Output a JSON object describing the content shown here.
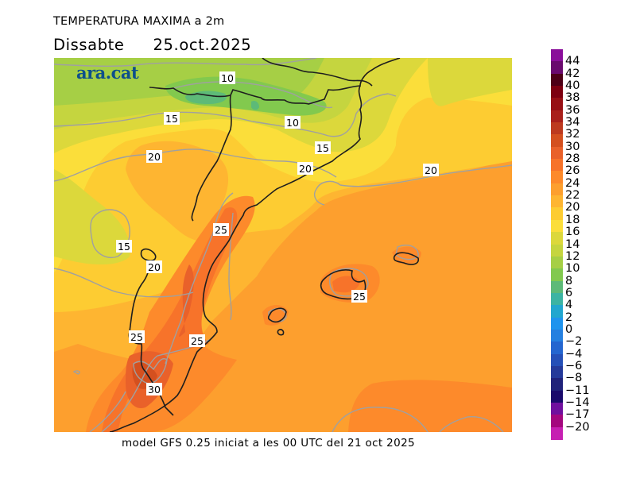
{
  "header": {
    "title": "TEMPERATURA MAXIMA a 2m",
    "day": "Dissabte",
    "date": "25.oct.2025"
  },
  "map": {
    "logo": "ara.cat",
    "contour_labels": [
      "10",
      "10",
      "15",
      "15",
      "15",
      "20",
      "20",
      "20",
      "20",
      "25",
      "25",
      "25",
      "25",
      "30"
    ]
  },
  "footer": {
    "caption": "model GFS 0.25 iniciat a les 00 UTC del 21 oct 2025"
  },
  "colorbar": {
    "labels": [
      "44",
      "42",
      "40",
      "38",
      "36",
      "34",
      "32",
      "30",
      "28",
      "26",
      "24",
      "22",
      "20",
      "18",
      "16",
      "14",
      "12",
      "10",
      "8",
      "6",
      "4",
      "2",
      "0",
      "−2",
      "−4",
      "−6",
      "−8",
      "−11",
      "−14",
      "−17",
      "−20"
    ],
    "colors": [
      "#8a0e9a",
      "#6a0a6e",
      "#4d0016",
      "#7d0010",
      "#970f14",
      "#a9201b",
      "#bd3a1f",
      "#d4501f",
      "#e9612a",
      "#f7732a",
      "#fd8a2b",
      "#fd9f2e",
      "#feb531",
      "#fdcc32",
      "#fbde3a",
      "#dcd83b",
      "#c5d53f",
      "#a6cf45",
      "#82c94e",
      "#5dba78",
      "#3cb4a3",
      "#22a7cf",
      "#1f94ee",
      "#2580e0",
      "#2466d0",
      "#2550b8",
      "#253a9a",
      "#20227a",
      "#1a0a6c",
      "#70109e",
      "#a4077e",
      "#c620b2"
    ]
  }
}
